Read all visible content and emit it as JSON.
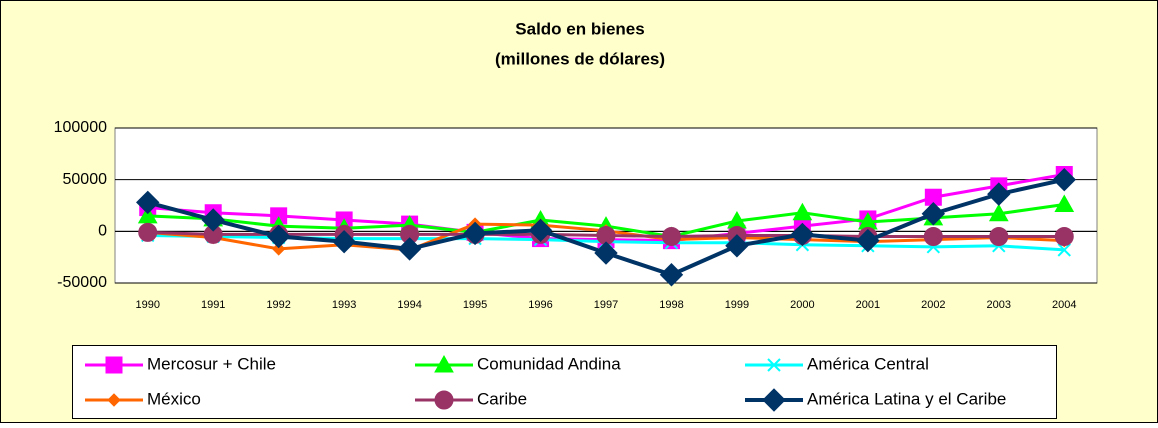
{
  "chart_data": {
    "type": "line",
    "title": "Saldo en bienes",
    "subtitle": "(millones de dólares)",
    "categories": [
      "1990",
      "1991",
      "1992",
      "1993",
      "1994",
      "1995",
      "1996",
      "1997",
      "1998",
      "1999",
      "2000",
      "2001",
      "2002",
      "2003",
      "2004"
    ],
    "series": [
      {
        "name": "Mercosur + Chile",
        "color": "#ff00ff",
        "marker": "square",
        "values": [
          23000,
          18000,
          15000,
          11000,
          7000,
          -1000,
          -7000,
          -8000,
          -9000,
          -2000,
          5000,
          12000,
          33000,
          44000,
          55000
        ]
      },
      {
        "name": "Comunidad Andina",
        "color": "#00ff00",
        "marker": "triangle",
        "values": [
          15000,
          12000,
          5000,
          3000,
          6000,
          -1000,
          11000,
          5000,
          -5000,
          10000,
          18000,
          9000,
          13000,
          17000,
          26000
        ]
      },
      {
        "name": "América Central",
        "color": "#00ffff",
        "marker": "x",
        "values": [
          -4000,
          -5000,
          -6000,
          -7000,
          -7000,
          -7000,
          -8000,
          -10000,
          -11000,
          -11000,
          -13000,
          -14000,
          -15000,
          -14000,
          -18000
        ]
      },
      {
        "name": "México",
        "color": "#ff6600",
        "marker": "diamond",
        "values": [
          -1000,
          -6000,
          -17000,
          -13000,
          -18000,
          7000,
          6000,
          500,
          -8000,
          -6000,
          -8000,
          -10000,
          -8000,
          -6000,
          -9000
        ]
      },
      {
        "name": "Caribe",
        "color": "#993366",
        "marker": "circle",
        "values": [
          -1000,
          -3000,
          -3000,
          -3000,
          -3000,
          -3000,
          -3000,
          -4000,
          -5000,
          -4000,
          -4000,
          -5000,
          -5000,
          -5000,
          -5000
        ]
      },
      {
        "name": "América Latina y el Caribe",
        "color": "#003366",
        "marker": "bigdiamond",
        "values": [
          28000,
          11000,
          -5000,
          -10000,
          -17000,
          -2000,
          1000,
          -21000,
          -42000,
          -14000,
          -3000,
          -9000,
          17000,
          36000,
          50000
        ]
      }
    ],
    "ylim": [
      -50000,
      100000
    ],
    "yticks": [
      -50000,
      0,
      50000,
      100000
    ],
    "grid": true,
    "legend": "bottom"
  }
}
